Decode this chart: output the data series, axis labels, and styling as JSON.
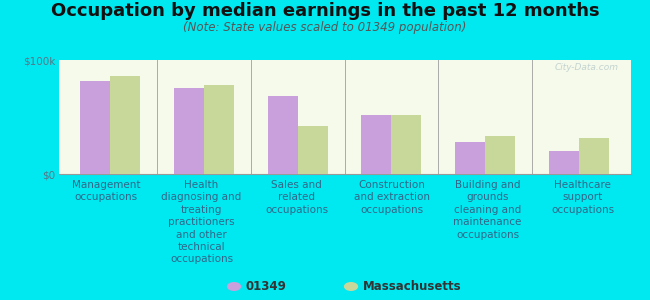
{
  "title": "Occupation by median earnings in the past 12 months",
  "subtitle": "(Note: State values scaled to 01349 population)",
  "categories": [
    "Management\noccupations",
    "Health\ndiagnosing and\ntreating\npractitioners\nand other\ntechnical\noccupations",
    "Sales and\nrelated\noccupations",
    "Construction\nand extraction\noccupations",
    "Building and\ngrounds\ncleaning and\nmaintenance\noccupations",
    "Healthcare\nsupport\noccupations"
  ],
  "values_01349": [
    82000,
    75000,
    68000,
    52000,
    28000,
    20000
  ],
  "values_ma": [
    86000,
    78000,
    42000,
    52000,
    33000,
    32000
  ],
  "color_01349": "#c9a0dc",
  "color_ma": "#c8d89a",
  "ylim": [
    0,
    100000
  ],
  "background_color": "#00e8f0",
  "plot_bg_top": "#e8f5d0",
  "plot_bg_bottom": "#f5faea",
  "legend_label_01349": "01349",
  "legend_label_ma": "Massachusetts",
  "watermark": "City-Data.com",
  "title_fontsize": 13,
  "subtitle_fontsize": 8.5,
  "tick_fontsize": 7.5,
  "label_fontsize": 7.5
}
